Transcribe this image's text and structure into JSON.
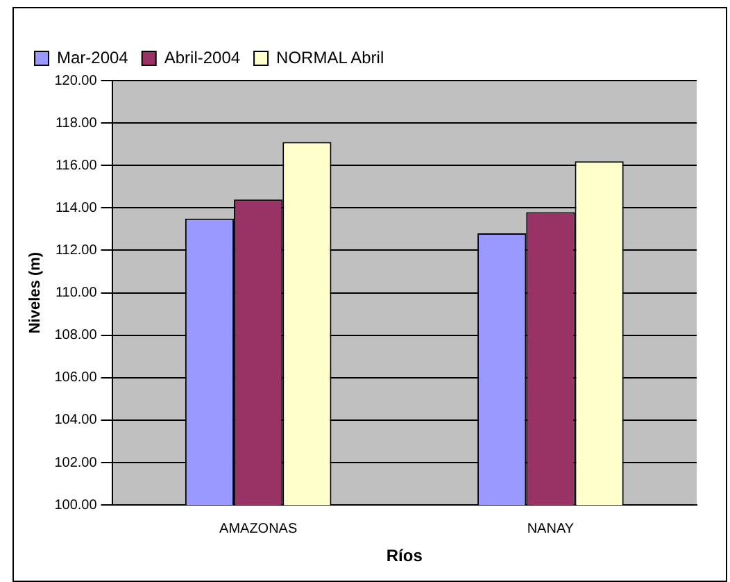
{
  "chart_data": {
    "type": "bar",
    "xlabel": "Ríos",
    "ylabel": "Niveles (m)",
    "categories": [
      "AMAZONAS",
      "NANAY"
    ],
    "series": [
      {
        "name": "Mar-2004",
        "color": "#9999ff",
        "values": [
          113.5,
          112.8
        ]
      },
      {
        "name": "Abril-2004",
        "color": "#993366",
        "values": [
          114.4,
          113.8
        ]
      },
      {
        "name": "NORMAL Abril",
        "color": "#ffffcc",
        "values": [
          117.1,
          116.2
        ]
      }
    ],
    "ylim": [
      100,
      120
    ],
    "yticks": [
      {
        "value": 100,
        "label": "100.00"
      },
      {
        "value": 102,
        "label": "102.00"
      },
      {
        "value": 104,
        "label": "104.00"
      },
      {
        "value": 106,
        "label": "106.00"
      },
      {
        "value": 108,
        "label": "108.00"
      },
      {
        "value": 110,
        "label": "110.00"
      },
      {
        "value": 112,
        "label": "112.00"
      },
      {
        "value": 114,
        "label": "114.00"
      },
      {
        "value": 116,
        "label": "116.00"
      },
      {
        "value": 118,
        "label": "118.00"
      },
      {
        "value": 120,
        "label": "120.00"
      }
    ],
    "grid": "y",
    "legend": "top left"
  }
}
